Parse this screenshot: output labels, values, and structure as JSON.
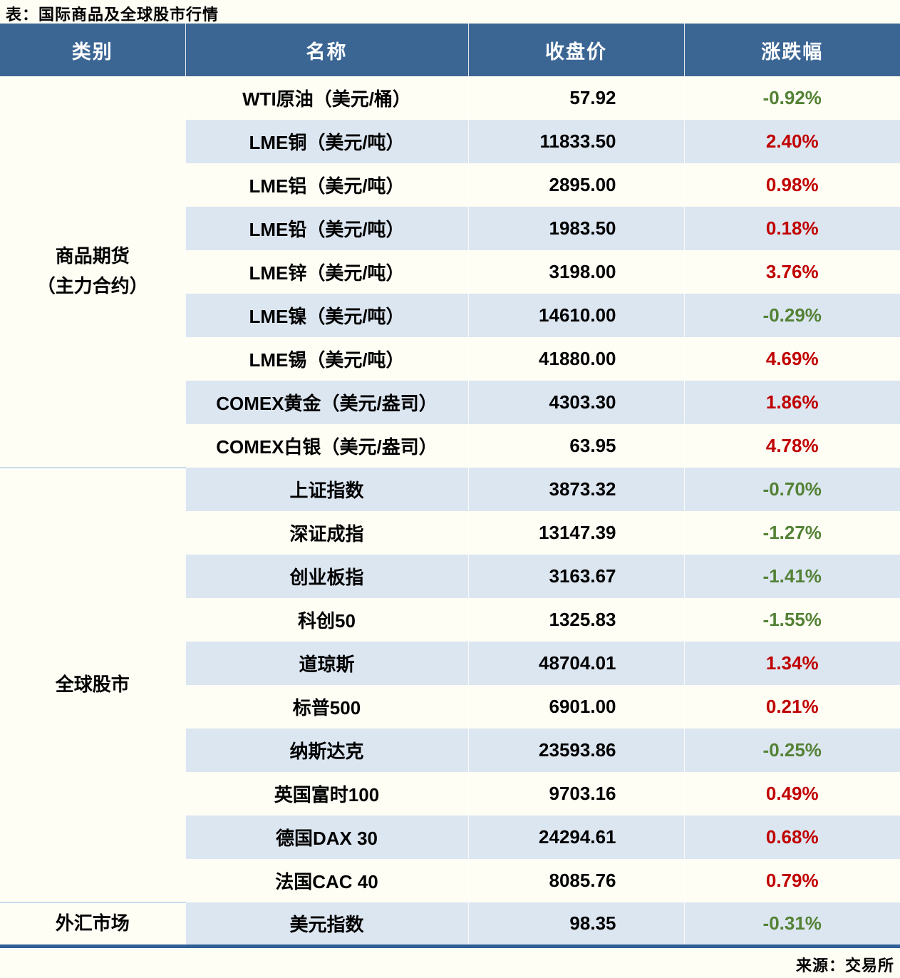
{
  "title": "表：国际商品及全球股市行情",
  "source": "来源：交易所",
  "colors": {
    "header_bg": "#3b6694",
    "stripe_bg": "#dce6f1",
    "positive": "#c00000",
    "negative": "#548235",
    "bottom_rule": "#2f5f96",
    "page_bg": "#fffef5"
  },
  "table": {
    "headers": [
      "类别",
      "名称",
      "收盘价",
      "涨跌幅"
    ],
    "groups": [
      {
        "category_lines": [
          "商品期货",
          "（主力合约）"
        ],
        "rows": [
          {
            "name": "WTI原油（美元/桶）",
            "close": "57.92",
            "change": "-0.92%"
          },
          {
            "name": "LME铜（美元/吨）",
            "close": "11833.50",
            "change": "2.40%"
          },
          {
            "name": "LME铝（美元/吨）",
            "close": "2895.00",
            "change": "0.98%"
          },
          {
            "name": "LME铅（美元/吨）",
            "close": "1983.50",
            "change": "0.18%"
          },
          {
            "name": "LME锌（美元/吨）",
            "close": "3198.00",
            "change": "3.76%"
          },
          {
            "name": "LME镍（美元/吨）",
            "close": "14610.00",
            "change": "-0.29%"
          },
          {
            "name": "LME锡（美元/吨）",
            "close": "41880.00",
            "change": "4.69%"
          },
          {
            "name": "COMEX黄金（美元/盎司）",
            "close": "4303.30",
            "change": "1.86%"
          },
          {
            "name": "COMEX白银（美元/盎司）",
            "close": "63.95",
            "change": "4.78%"
          }
        ]
      },
      {
        "category_lines": [
          "全球股市"
        ],
        "rows": [
          {
            "name": "上证指数",
            "close": "3873.32",
            "change": "-0.70%"
          },
          {
            "name": "深证成指",
            "close": "13147.39",
            "change": "-1.27%"
          },
          {
            "name": "创业板指",
            "close": "3163.67",
            "change": "-1.41%"
          },
          {
            "name": "科创50",
            "close": "1325.83",
            "change": "-1.55%"
          },
          {
            "name": "道琼斯",
            "close": "48704.01",
            "change": "1.34%"
          },
          {
            "name": "标普500",
            "close": "6901.00",
            "change": "0.21%"
          },
          {
            "name": "纳斯达克",
            "close": "23593.86",
            "change": "-0.25%"
          },
          {
            "name": "英国富时100",
            "close": "9703.16",
            "change": "0.49%"
          },
          {
            "name": "德国DAX 30",
            "close": "24294.61",
            "change": "0.68%"
          },
          {
            "name": "法国CAC 40",
            "close": "8085.76",
            "change": "0.79%"
          }
        ]
      },
      {
        "category_lines": [
          "外汇市场"
        ],
        "rows": [
          {
            "name": "美元指数",
            "close": "98.35",
            "change": "-0.31%"
          }
        ]
      }
    ]
  }
}
